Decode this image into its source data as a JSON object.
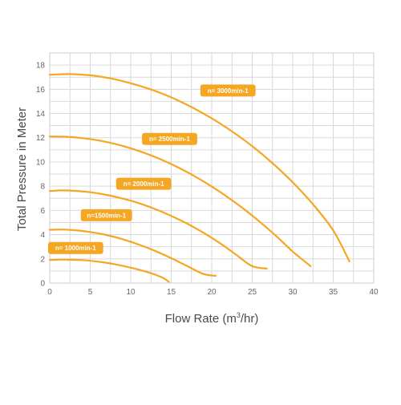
{
  "chart_data": {
    "type": "line",
    "xlabel": "Flow Rate (m",
    "xlabel_sup": "3",
    "xlabel_end": "/hr)",
    "ylabel": "Total Pressure in Meter",
    "xlim": [
      0,
      40
    ],
    "ylim": [
      0,
      19
    ],
    "x_ticks": [
      0,
      5,
      10,
      15,
      20,
      25,
      30,
      35,
      40
    ],
    "y_ticks": [
      0,
      2,
      4,
      6,
      8,
      10,
      12,
      14,
      16,
      18
    ],
    "grid": true,
    "color": "#F5A623",
    "series": [
      {
        "name": "n= 1000min-1",
        "x": [
          0,
          1,
          2,
          4,
          6,
          8,
          10,
          12,
          13,
          14,
          14.7
        ],
        "y": [
          1.9,
          1.93,
          1.94,
          1.9,
          1.77,
          1.56,
          1.28,
          0.92,
          0.7,
          0.43,
          0.1
        ]
      },
      {
        "name": "n=1500min-1",
        "x": [
          0,
          1.5,
          3,
          5,
          7,
          9,
          11,
          13,
          15,
          17,
          19,
          20.5
        ],
        "y": [
          4.4,
          4.42,
          4.37,
          4.22,
          3.97,
          3.62,
          3.18,
          2.66,
          2.06,
          1.4,
          0.75,
          0.6
        ]
      },
      {
        "name": "n= 2000min-1",
        "x": [
          0,
          1.5,
          3,
          5,
          7,
          9,
          11,
          13,
          15,
          17,
          19,
          21,
          23,
          25,
          26.8
        ],
        "y": [
          7.6,
          7.65,
          7.62,
          7.5,
          7.28,
          6.98,
          6.6,
          6.12,
          5.55,
          4.9,
          4.15,
          3.3,
          2.35,
          1.4,
          1.2
        ]
      },
      {
        "name": "n= 2500min-1",
        "x": [
          0,
          2,
          4,
          6,
          8,
          10,
          12,
          14,
          16,
          18,
          20,
          22,
          24,
          26,
          28,
          30,
          32.2
        ],
        "y": [
          12.1,
          12.08,
          11.97,
          11.78,
          11.5,
          11.13,
          10.67,
          10.13,
          9.5,
          8.78,
          7.97,
          7.08,
          6.1,
          5.02,
          3.86,
          2.6,
          1.4
        ]
      },
      {
        "name": "n= 3000min-1",
        "x": [
          0,
          2.5,
          5,
          7.5,
          10,
          12.5,
          15,
          17.5,
          20,
          22.5,
          25,
          27.5,
          30,
          32.5,
          35,
          37
        ],
        "y": [
          17.2,
          17.25,
          17.15,
          16.9,
          16.5,
          15.98,
          15.33,
          14.53,
          13.6,
          12.52,
          11.3,
          9.9,
          8.32,
          6.5,
          4.35,
          1.8
        ]
      }
    ],
    "labels": [
      {
        "text": "n= 3000min-1",
        "x": 22,
        "y": 15.9
      },
      {
        "text": "n= 2500min-1",
        "x": 14.8,
        "y": 11.9
      },
      {
        "text": "n= 2000min-1",
        "x": 11.6,
        "y": 8.2
      },
      {
        "text": "n=1500min-1",
        "x": 7,
        "y": 5.6
      },
      {
        "text": "n= 1000min-1",
        "x": 3.2,
        "y": 2.9
      }
    ]
  }
}
